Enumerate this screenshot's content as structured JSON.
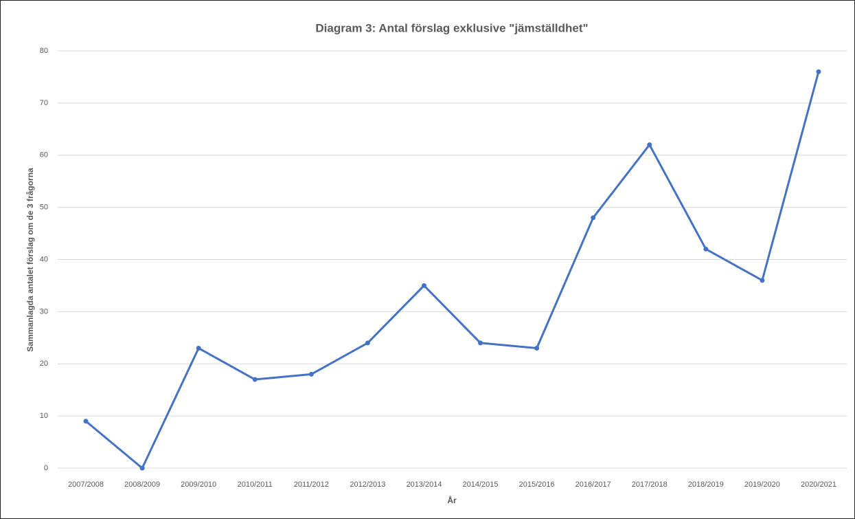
{
  "chart_data": {
    "type": "line",
    "title": "Diagram 3: Antal förslag exklusive \"jämställdhet\"",
    "x_label": "År",
    "y_label": "Sammanlagda antalet förslag om de 3 frågorna",
    "categories": [
      "2007/2008",
      "2008/2009",
      "2009/2010",
      "2010/2011",
      "2011/2012",
      "2012/2013",
      "2013/2014",
      "2014/2015",
      "2015/2016",
      "2016/2017",
      "2017/2018",
      "2018/2019",
      "2019/2020",
      "2020/2021"
    ],
    "values": [
      9,
      0,
      23,
      17,
      18,
      24,
      35,
      24,
      23,
      48,
      62,
      42,
      36,
      76
    ],
    "color": "#4472c4",
    "ylim": [
      0,
      80
    ],
    "yticks": [
      0,
      10,
      20,
      30,
      40,
      50,
      60,
      70,
      80
    ],
    "grid": true
  }
}
